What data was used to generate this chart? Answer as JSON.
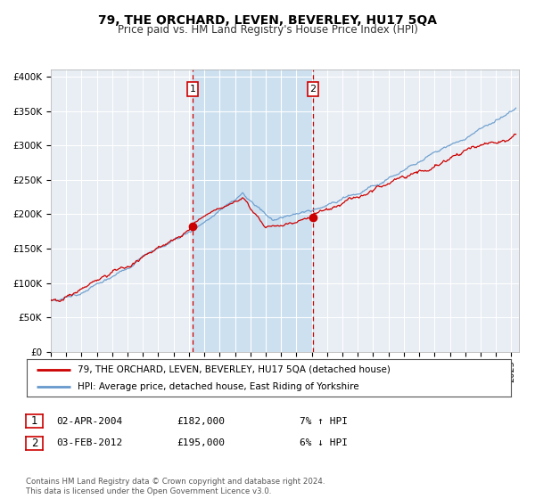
{
  "title": "79, THE ORCHARD, LEVEN, BEVERLEY, HU17 5QA",
  "subtitle": "Price paid vs. HM Land Registry's House Price Index (HPI)",
  "title_fontsize": 10,
  "subtitle_fontsize": 8.5,
  "background_color": "#ffffff",
  "plot_bg_color": "#e8eef4",
  "grid_color": "#ffffff",
  "hpi_color": "#6699cc",
  "price_color": "#cc0000",
  "shading_color": "#cce0f0",
  "ylim": [
    0,
    410000
  ],
  "yticks": [
    0,
    50000,
    100000,
    150000,
    200000,
    250000,
    300000,
    350000,
    400000
  ],
  "ytick_labels": [
    "£0",
    "£50K",
    "£100K",
    "£150K",
    "£200K",
    "£250K",
    "£300K",
    "£350K",
    "£400K"
  ],
  "sale1_date": 2004.25,
  "sale1_price": 182000,
  "sale2_date": 2012.08,
  "sale2_price": 195000,
  "legend_line1": "79, THE ORCHARD, LEVEN, BEVERLEY, HU17 5QA (detached house)",
  "legend_line2": "HPI: Average price, detached house, East Riding of Yorkshire",
  "table_entry1_date": "02-APR-2004",
  "table_entry1_price": "£182,000",
  "table_entry1_hpi": "7% ↑ HPI",
  "table_entry2_date": "03-FEB-2012",
  "table_entry2_price": "£195,000",
  "table_entry2_hpi": "6% ↓ HPI",
  "footer": "Contains HM Land Registry data © Crown copyright and database right 2024.\nThis data is licensed under the Open Government Licence v3.0.",
  "xmin": 1995,
  "xmax": 2025.5
}
